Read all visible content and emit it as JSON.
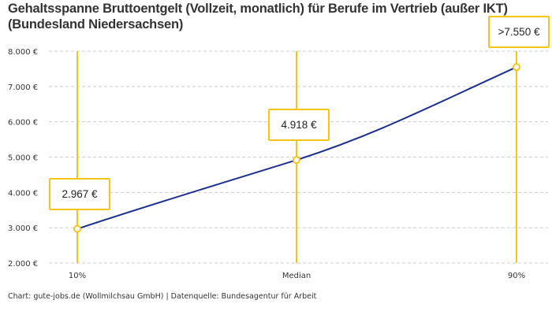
{
  "title": "Gehaltsspanne Bruttoentgelt (Vollzeit, monatlich) für Berufe im Vertrieb (außer IKT) (Bundesland Niedersachsen)",
  "footer": "Chart: gute-jobs.de (Wollmilchsau GmbH) | Datenquelle: Bundesagentur für Arbeit",
  "colors": {
    "line": "#1a2f8f",
    "marker": "#f5c518",
    "grid": "#cccccc"
  },
  "chart_data": {
    "type": "line",
    "categories": [
      "10%",
      "Median",
      "90%"
    ],
    "values": [
      2967,
      4918,
      7550
    ],
    "data_labels": [
      "2.967 €",
      "4.918 €",
      ">7.550 €"
    ],
    "ylim": [
      2000,
      8000
    ],
    "yticks": [
      2000,
      3000,
      4000,
      5000,
      6000,
      7000,
      8000
    ],
    "ytick_labels": [
      "2.000 €",
      "3.000 €",
      "4.000 €",
      "5.000 €",
      "6.000 €",
      "7.000 €",
      "8.000 €"
    ],
    "grid": true,
    "smooth": true
  }
}
